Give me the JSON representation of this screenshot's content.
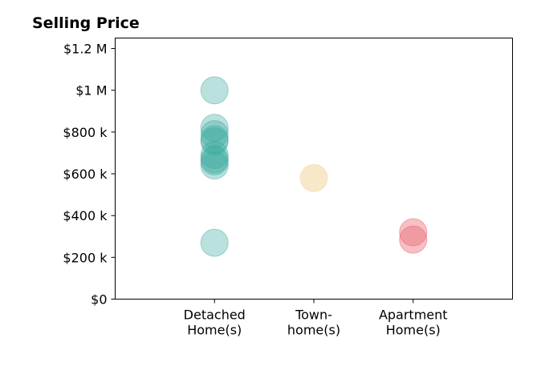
{
  "chart_data": {
    "type": "scatter",
    "title": "Selling Price",
    "xlabel": "",
    "ylabel": "",
    "categories": [
      {
        "lines": [
          "Detached",
          "Home(s)"
        ]
      },
      {
        "lines": [
          "Town-",
          "home(s)"
        ]
      },
      {
        "lines": [
          "Apartment",
          "Home(s)"
        ]
      }
    ],
    "ylim": [
      0,
      1250000
    ],
    "yticks": [
      {
        "value": 0,
        "label": "$0"
      },
      {
        "value": 200000,
        "label": "$200 k"
      },
      {
        "value": 400000,
        "label": "$400 k"
      },
      {
        "value": 600000,
        "label": "$600 k"
      },
      {
        "value": 800000,
        "label": "$800 k"
      },
      {
        "value": 1000000,
        "label": "$1 M"
      },
      {
        "value": 1200000,
        "label": "$1.2 M"
      }
    ],
    "grid": false,
    "legend": "none",
    "series": [
      {
        "category": 0,
        "color": "#3aa99f",
        "opacity": 0.35,
        "values": [
          1000000,
          820000,
          790000,
          765000,
          755000,
          690000,
          670000,
          660000,
          640000,
          270000
        ]
      },
      {
        "category": 1,
        "color": "#f5deb3",
        "opacity": 0.7,
        "values": [
          580000
        ]
      },
      {
        "category": 2,
        "color": "#e8616f",
        "opacity": 0.4,
        "values": [
          320000,
          285000
        ]
      }
    ]
  }
}
